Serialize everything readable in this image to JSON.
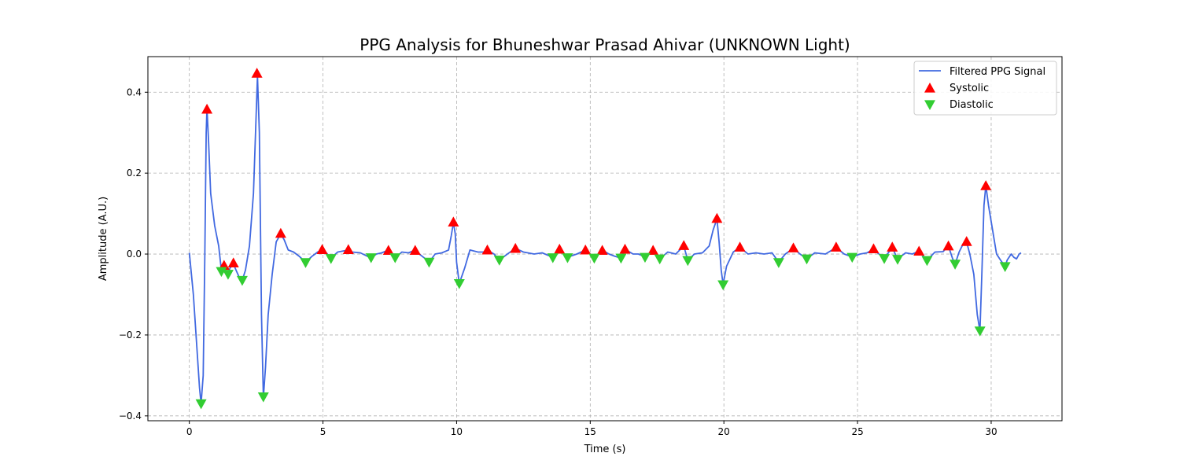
{
  "chart_data": {
    "type": "line",
    "title": "PPG Analysis for Bhuneshwar Prasad Ahivar (UNKNOWN Light)",
    "xlabel": "Time (s)",
    "ylabel": "Amplitude (A.U.)",
    "xlim": [
      -1.55,
      32.65
    ],
    "ylim": [
      -0.412,
      0.488
    ],
    "xticks": [
      0,
      5,
      10,
      15,
      20,
      25,
      30
    ],
    "xtick_labels": [
      "0",
      "5",
      "10",
      "15",
      "20",
      "25",
      "30"
    ],
    "yticks": [
      -0.4,
      -0.2,
      0.0,
      0.2,
      0.4
    ],
    "ytick_labels": [
      "−0.4",
      "−0.2",
      "0.0",
      "0.2",
      "0.4"
    ],
    "grid": true,
    "legend_position": "upper right",
    "colors": {
      "signal": "#4169E1",
      "systolic": "#FF0000",
      "diastolic": "#32CD32",
      "grid": "#b0b0b0"
    },
    "series": [
      {
        "name": "Filtered PPG Signal",
        "kind": "line",
        "points": [
          [
            0.0,
            0.003
          ],
          [
            0.15,
            -0.1
          ],
          [
            0.3,
            -0.25
          ],
          [
            0.38,
            -0.33
          ],
          [
            0.44,
            -0.37
          ],
          [
            0.52,
            -0.3
          ],
          [
            0.58,
            0.0
          ],
          [
            0.63,
            0.3
          ],
          [
            0.66,
            0.36
          ],
          [
            0.72,
            0.28
          ],
          [
            0.8,
            0.15
          ],
          [
            0.95,
            0.07
          ],
          [
            1.1,
            0.02
          ],
          [
            1.2,
            -0.04
          ],
          [
            1.28,
            -0.03
          ],
          [
            1.35,
            -0.04
          ],
          [
            1.43,
            -0.05
          ],
          [
            1.52,
            -0.035
          ],
          [
            1.65,
            -0.025
          ],
          [
            1.75,
            -0.04
          ],
          [
            1.85,
            -0.055
          ],
          [
            1.98,
            -0.065
          ],
          [
            2.1,
            -0.04
          ],
          [
            2.25,
            0.02
          ],
          [
            2.4,
            0.15
          ],
          [
            2.55,
            0.44
          ],
          [
            2.62,
            0.3
          ],
          [
            2.7,
            -0.15
          ],
          [
            2.77,
            -0.355
          ],
          [
            2.85,
            -0.28
          ],
          [
            2.95,
            -0.15
          ],
          [
            3.1,
            -0.05
          ],
          [
            3.25,
            0.03
          ],
          [
            3.42,
            0.05
          ],
          [
            3.55,
            0.035
          ],
          [
            3.7,
            0.01
          ],
          [
            3.9,
            0.005
          ],
          [
            4.1,
            -0.005
          ],
          [
            4.35,
            -0.02
          ],
          [
            4.6,
            -0.005
          ],
          [
            4.8,
            0.005
          ],
          [
            4.98,
            0.01
          ],
          [
            5.1,
            0.005
          ],
          [
            5.3,
            -0.01
          ],
          [
            5.55,
            0.005
          ],
          [
            5.8,
            0.008
          ],
          [
            5.95,
            0.01
          ],
          [
            6.1,
            0.005
          ],
          [
            6.4,
            0.003
          ],
          [
            6.8,
            -0.01
          ],
          [
            7.0,
            0.0
          ],
          [
            7.2,
            0.003
          ],
          [
            7.45,
            0.01
          ],
          [
            7.6,
            -0.002
          ],
          [
            7.7,
            -0.01
          ],
          [
            7.95,
            0.005
          ],
          [
            8.2,
            0.003
          ],
          [
            8.45,
            0.01
          ],
          [
            8.6,
            0.0
          ],
          [
            8.8,
            -0.01
          ],
          [
            8.97,
            -0.02
          ],
          [
            9.2,
            0.0
          ],
          [
            9.45,
            0.003
          ],
          [
            9.7,
            0.01
          ],
          [
            9.8,
            0.045
          ],
          [
            9.88,
            0.078
          ],
          [
            9.95,
            0.05
          ],
          [
            10.0,
            -0.02
          ],
          [
            10.1,
            -0.073
          ],
          [
            10.3,
            -0.035
          ],
          [
            10.5,
            0.01
          ],
          [
            10.8,
            0.005
          ],
          [
            11.0,
            0.005
          ],
          [
            11.15,
            0.01
          ],
          [
            11.4,
            0.0
          ],
          [
            11.6,
            -0.015
          ],
          [
            11.9,
            0.0
          ],
          [
            12.2,
            0.014
          ],
          [
            12.5,
            0.005
          ],
          [
            12.9,
            0.0
          ],
          [
            13.2,
            0.003
          ],
          [
            13.6,
            -0.008
          ],
          [
            13.85,
            0.012
          ],
          [
            14.0,
            0.0
          ],
          [
            14.15,
            -0.008
          ],
          [
            14.5,
            0.0
          ],
          [
            14.82,
            0.01
          ],
          [
            15.0,
            0.0
          ],
          [
            15.15,
            -0.01
          ],
          [
            15.45,
            0.01
          ],
          [
            15.7,
            0.0
          ],
          [
            15.9,
            -0.005
          ],
          [
            16.15,
            -0.01
          ],
          [
            16.3,
            0.012
          ],
          [
            16.6,
            0.0
          ],
          [
            16.8,
            0.0
          ],
          [
            17.05,
            -0.007
          ],
          [
            17.35,
            0.01
          ],
          [
            17.6,
            -0.012
          ],
          [
            17.9,
            0.005
          ],
          [
            18.2,
            0.0
          ],
          [
            18.5,
            0.02
          ],
          [
            18.65,
            -0.015
          ],
          [
            18.9,
            0.0
          ],
          [
            19.2,
            0.003
          ],
          [
            19.45,
            0.02
          ],
          [
            19.6,
            0.06
          ],
          [
            19.74,
            0.087
          ],
          [
            19.82,
            0.03
          ],
          [
            19.9,
            -0.04
          ],
          [
            19.97,
            -0.075
          ],
          [
            20.1,
            -0.03
          ],
          [
            20.35,
            0.005
          ],
          [
            20.6,
            0.017
          ],
          [
            20.9,
            0.0
          ],
          [
            21.2,
            0.003
          ],
          [
            21.5,
            0.0
          ],
          [
            21.8,
            0.003
          ],
          [
            22.05,
            -0.02
          ],
          [
            22.3,
            0.0
          ],
          [
            22.6,
            0.014
          ],
          [
            22.85,
            0.0
          ],
          [
            23.1,
            -0.012
          ],
          [
            23.4,
            0.003
          ],
          [
            23.8,
            0.0
          ],
          [
            24.2,
            0.016
          ],
          [
            24.5,
            0.0
          ],
          [
            24.8,
            -0.007
          ],
          [
            25.1,
            0.0
          ],
          [
            25.35,
            0.003
          ],
          [
            25.6,
            0.012
          ],
          [
            25.8,
            0.0
          ],
          [
            26.0,
            -0.01
          ],
          [
            26.3,
            0.016
          ],
          [
            26.5,
            -0.012
          ],
          [
            26.8,
            0.003
          ],
          [
            27.05,
            0.0
          ],
          [
            27.3,
            0.007
          ],
          [
            27.6,
            -0.015
          ],
          [
            27.9,
            0.005
          ],
          [
            28.2,
            0.006
          ],
          [
            28.4,
            0.02
          ],
          [
            28.55,
            -0.01
          ],
          [
            28.65,
            -0.025
          ],
          [
            28.8,
            0.005
          ],
          [
            28.95,
            0.025
          ],
          [
            29.08,
            0.03
          ],
          [
            29.2,
            0.0
          ],
          [
            29.35,
            -0.05
          ],
          [
            29.48,
            -0.15
          ],
          [
            29.58,
            -0.19
          ],
          [
            29.65,
            -0.05
          ],
          [
            29.73,
            0.12
          ],
          [
            29.8,
            0.17
          ],
          [
            29.9,
            0.12
          ],
          [
            30.05,
            0.06
          ],
          [
            30.2,
            0.0
          ],
          [
            30.35,
            -0.015
          ],
          [
            30.52,
            -0.03
          ],
          [
            30.6,
            -0.015
          ],
          [
            30.75,
            0.0
          ],
          [
            30.85,
            -0.008
          ],
          [
            30.95,
            -0.012
          ],
          [
            31.05,
            0.0
          ],
          [
            31.12,
            0.003
          ]
        ]
      },
      {
        "name": "Systolic",
        "kind": "marker",
        "marker": "triangle-up",
        "points": [
          [
            0.66,
            0.358
          ],
          [
            1.3,
            -0.028
          ],
          [
            1.65,
            -0.022
          ],
          [
            2.53,
            0.447
          ],
          [
            3.42,
            0.051
          ],
          [
            4.97,
            0.011
          ],
          [
            5.95,
            0.011
          ],
          [
            7.45,
            0.009
          ],
          [
            8.45,
            0.009
          ],
          [
            9.88,
            0.079
          ],
          [
            11.15,
            0.01
          ],
          [
            12.2,
            0.014
          ],
          [
            13.85,
            0.012
          ],
          [
            14.82,
            0.01
          ],
          [
            15.45,
            0.009
          ],
          [
            16.3,
            0.012
          ],
          [
            17.35,
            0.009
          ],
          [
            18.5,
            0.021
          ],
          [
            19.74,
            0.088
          ],
          [
            20.6,
            0.017
          ],
          [
            22.6,
            0.015
          ],
          [
            24.2,
            0.017
          ],
          [
            25.6,
            0.013
          ],
          [
            26.3,
            0.017
          ],
          [
            27.3,
            0.007
          ],
          [
            28.4,
            0.02
          ],
          [
            29.08,
            0.031
          ],
          [
            29.8,
            0.169
          ]
        ]
      },
      {
        "name": "Diastolic",
        "kind": "marker",
        "marker": "triangle-down",
        "points": [
          [
            0.44,
            -0.37
          ],
          [
            1.2,
            -0.043
          ],
          [
            1.45,
            -0.05
          ],
          [
            1.98,
            -0.065
          ],
          [
            2.77,
            -0.353
          ],
          [
            4.35,
            -0.021
          ],
          [
            5.3,
            -0.011
          ],
          [
            6.8,
            -0.009
          ],
          [
            7.7,
            -0.009
          ],
          [
            8.97,
            -0.02
          ],
          [
            10.1,
            -0.073
          ],
          [
            11.6,
            -0.015
          ],
          [
            13.6,
            -0.009
          ],
          [
            14.15,
            -0.009
          ],
          [
            15.15,
            -0.01
          ],
          [
            16.15,
            -0.01
          ],
          [
            17.05,
            -0.008
          ],
          [
            17.6,
            -0.012
          ],
          [
            18.65,
            -0.016
          ],
          [
            19.97,
            -0.076
          ],
          [
            22.05,
            -0.021
          ],
          [
            23.1,
            -0.012
          ],
          [
            24.8,
            -0.008
          ],
          [
            26.0,
            -0.011
          ],
          [
            26.5,
            -0.013
          ],
          [
            27.6,
            -0.016
          ],
          [
            28.65,
            -0.025
          ],
          [
            29.58,
            -0.19
          ],
          [
            30.52,
            -0.031
          ]
        ]
      }
    ]
  }
}
